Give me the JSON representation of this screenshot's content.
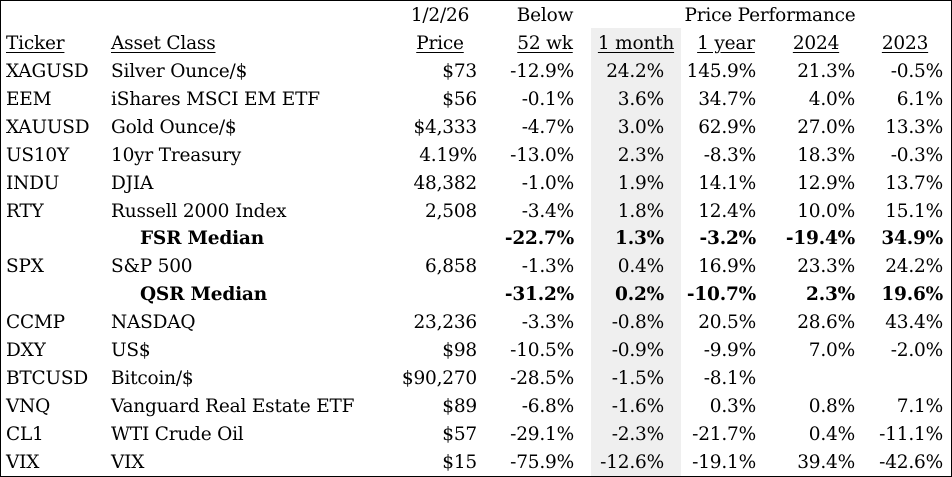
{
  "header": {
    "top": {
      "date": "1/2/26",
      "below": "Below",
      "group": "Price Performance"
    },
    "columns": {
      "ticker": "Ticker",
      "asset_class": "Asset Class",
      "price": "Price",
      "below_52wk": "52 wk",
      "m1": "1 month",
      "y1": "1 year",
      "y2024": "2024",
      "y2023": "2023"
    }
  },
  "rows": [
    {
      "ticker": "XAGUSD",
      "asset": "Silver Ounce/$",
      "price": "$73",
      "below": "-12.9%",
      "m1": "24.2%",
      "y1": "145.9%",
      "y2024": "21.3%",
      "y2023": "-0.5%",
      "bold": false
    },
    {
      "ticker": "EEM",
      "asset": "iShares MSCI EM ETF",
      "price": "$56",
      "below": "-0.1%",
      "m1": "3.6%",
      "y1": "34.7%",
      "y2024": "4.0%",
      "y2023": "6.1%",
      "bold": false
    },
    {
      "ticker": "XAUUSD",
      "asset": "Gold Ounce/$",
      "price": "$4,333",
      "below": "-4.7%",
      "m1": "3.0%",
      "y1": "62.9%",
      "y2024": "27.0%",
      "y2023": "13.3%",
      "bold": false
    },
    {
      "ticker": "US10Y",
      "asset": "10yr Treasury",
      "price": "4.19%",
      "below": "-13.0%",
      "m1": "2.3%",
      "y1": "-8.3%",
      "y2024": "18.3%",
      "y2023": "-0.3%",
      "bold": false
    },
    {
      "ticker": "INDU",
      "asset": "DJIA",
      "price": "48,382",
      "below": "-1.0%",
      "m1": "1.9%",
      "y1": "14.1%",
      "y2024": "12.9%",
      "y2023": "13.7%",
      "bold": false
    },
    {
      "ticker": "RTY",
      "asset": "Russell 2000 Index",
      "price": "2,508",
      "below": "-3.4%",
      "m1": "1.8%",
      "y1": "12.4%",
      "y2024": "10.0%",
      "y2023": "15.1%",
      "bold": false
    },
    {
      "ticker": "",
      "asset": "FSR Median",
      "price": "",
      "below": "-22.7%",
      "m1": "1.3%",
      "y1": "-3.2%",
      "y2024": "-19.4%",
      "y2023": "34.9%",
      "bold": true
    },
    {
      "ticker": "SPX",
      "asset": "S&P 500",
      "price": "6,858",
      "below": "-1.3%",
      "m1": "0.4%",
      "y1": "16.9%",
      "y2024": "23.3%",
      "y2023": "24.2%",
      "bold": false
    },
    {
      "ticker": "",
      "asset": "QSR Median",
      "price": "",
      "below": "-31.2%",
      "m1": "0.2%",
      "y1": "-10.7%",
      "y2024": "2.3%",
      "y2023": "19.6%",
      "bold": true
    },
    {
      "ticker": "CCMP",
      "asset": "NASDAQ",
      "price": "23,236",
      "below": "-3.3%",
      "m1": "-0.8%",
      "y1": "20.5%",
      "y2024": "28.6%",
      "y2023": "43.4%",
      "bold": false
    },
    {
      "ticker": "DXY",
      "asset": "US$",
      "price": "$98",
      "below": "-10.5%",
      "m1": "-0.9%",
      "y1": "-9.9%",
      "y2024": "7.0%",
      "y2023": "-2.0%",
      "bold": false
    },
    {
      "ticker": "BTCUSD",
      "asset": "Bitcoin/$",
      "price": "$90,270",
      "below": "-28.5%",
      "m1": "-1.5%",
      "y1": "-8.1%",
      "y2024": "",
      "y2023": "",
      "bold": false
    },
    {
      "ticker": "VNQ",
      "asset": "Vanguard Real Estate ETF",
      "price": "$89",
      "below": "-6.8%",
      "m1": "-1.6%",
      "y1": "0.3%",
      "y2024": "0.8%",
      "y2023": "7.1%",
      "bold": false
    },
    {
      "ticker": "CL1",
      "asset": "WTI Crude Oil",
      "price": "$57",
      "below": "-29.1%",
      "m1": "-2.3%",
      "y1": "-21.7%",
      "y2024": "0.4%",
      "y2023": "-11.1%",
      "bold": false
    },
    {
      "ticker": "VIX",
      "asset": "VIX",
      "price": "$15",
      "below": "-75.9%",
      "m1": "-12.6%",
      "y1": "-19.1%",
      "y2024": "39.4%",
      "y2023": "-42.6%",
      "bold": false
    }
  ]
}
